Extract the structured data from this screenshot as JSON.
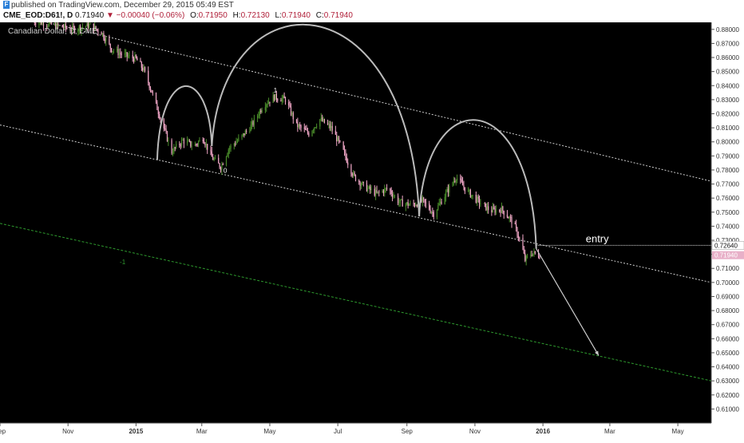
{
  "header": {
    "publisher_line": "published on TradingView.com, December 29, 2015 05:49 EST",
    "logo_glyph": "F",
    "symbol": "CME_EOD:D61!, D",
    "last_price": "0.71940",
    "change_arrow": "▼",
    "change": "−0.00040 (−0.06%)",
    "open_label": "O:",
    "open": "0.71950",
    "high_label": "H:",
    "high": "0.72130",
    "low_label": "L:",
    "low": "0.71940",
    "close_label": "C:",
    "close": "0.71940"
  },
  "chart_data": {
    "type": "candlestick",
    "title": "Canadian Dollar, D, CME",
    "background": "#000000",
    "up_color": "#4a8c2a",
    "down_color": "#f2a8c8",
    "ylim": [
      0.6,
      0.885
    ],
    "y_ticks": [
      "0.88000",
      "0.87000",
      "0.86000",
      "0.85000",
      "0.84000",
      "0.83000",
      "0.82000",
      "0.81000",
      "0.80000",
      "0.79000",
      "0.78000",
      "0.77000",
      "0.76000",
      "0.75000",
      "0.74000",
      "0.73000",
      "0.72000",
      "0.71000",
      "0.70000",
      "0.69000",
      "0.68000",
      "0.67000",
      "0.66000",
      "0.65000",
      "0.64000",
      "0.63000",
      "0.62000",
      "0.61000"
    ],
    "x_range": [
      "2014-09-01",
      "2016-05-31"
    ],
    "x_ticks": [
      {
        "date": "2014-09-01",
        "label": "Sep"
      },
      {
        "date": "2014-11-01",
        "label": "Nov"
      },
      {
        "date": "2015-01-01",
        "label": "2015"
      },
      {
        "date": "2015-03-01",
        "label": "Mar"
      },
      {
        "date": "2015-05-01",
        "label": "May"
      },
      {
        "date": "2015-07-01",
        "label": "Jul"
      },
      {
        "date": "2015-09-01",
        "label": "Sep"
      },
      {
        "date": "2015-11-01",
        "label": "Nov"
      },
      {
        "date": "2016-01-01",
        "label": "2016"
      },
      {
        "date": "2016-03-01",
        "label": "Mar"
      },
      {
        "date": "2016-05-01",
        "label": "May"
      }
    ],
    "price_path": [
      [
        "2014-10-01",
        0.886
      ],
      [
        "2014-10-20",
        0.883
      ],
      [
        "2014-11-05",
        0.88
      ],
      [
        "2014-11-20",
        0.883
      ],
      [
        "2014-12-01",
        0.878
      ],
      [
        "2014-12-10",
        0.866
      ],
      [
        "2014-12-20",
        0.862
      ],
      [
        "2015-01-01",
        0.859
      ],
      [
        "2015-01-08",
        0.851
      ],
      [
        "2015-01-15",
        0.836
      ],
      [
        "2015-01-25",
        0.812
      ],
      [
        "2015-02-02",
        0.793
      ],
      [
        "2015-02-12",
        0.801
      ],
      [
        "2015-02-22",
        0.797
      ],
      [
        "2015-03-02",
        0.803
      ],
      [
        "2015-03-10",
        0.789
      ],
      [
        "2015-03-18",
        0.782
      ],
      [
        "2015-03-25",
        0.795
      ],
      [
        "2015-04-05",
        0.803
      ],
      [
        "2015-04-15",
        0.812
      ],
      [
        "2015-04-25",
        0.826
      ],
      [
        "2015-05-05",
        0.832
      ],
      [
        "2015-05-15",
        0.83
      ],
      [
        "2015-05-25",
        0.812
      ],
      [
        "2015-06-05",
        0.806
      ],
      [
        "2015-06-15",
        0.816
      ],
      [
        "2015-06-25",
        0.81
      ],
      [
        "2015-07-05",
        0.795
      ],
      [
        "2015-07-15",
        0.776
      ],
      [
        "2015-07-25",
        0.768
      ],
      [
        "2015-08-05",
        0.763
      ],
      [
        "2015-08-15",
        0.767
      ],
      [
        "2015-08-25",
        0.757
      ],
      [
        "2015-09-05",
        0.755
      ],
      [
        "2015-09-15",
        0.758
      ],
      [
        "2015-09-25",
        0.749
      ],
      [
        "2015-10-05",
        0.762
      ],
      [
        "2015-10-15",
        0.775
      ],
      [
        "2015-10-25",
        0.765
      ],
      [
        "2015-11-05",
        0.757
      ],
      [
        "2015-11-15",
        0.751
      ],
      [
        "2015-11-25",
        0.752
      ],
      [
        "2015-12-05",
        0.743
      ],
      [
        "2015-12-12",
        0.729
      ],
      [
        "2015-12-16",
        0.716
      ],
      [
        "2015-12-22",
        0.721
      ],
      [
        "2015-12-29",
        0.7194
      ]
    ],
    "channel_lines": [
      {
        "name": "upper",
        "color": "#cccccc",
        "dash": "2,2",
        "p1": [
          "2014-09-01",
          0.893
        ],
        "p2": [
          "2016-05-31",
          0.772
        ]
      },
      {
        "name": "middle",
        "color": "#cccccc",
        "dash": "2,2",
        "p1": [
          "2014-09-01",
          0.812
        ],
        "p2": [
          "2016-05-31",
          0.7
        ]
      },
      {
        "name": "lower",
        "color": "#2e9a2e",
        "dash": "3,2",
        "p1": [
          "2014-09-01",
          0.742
        ],
        "p2": [
          "2016-05-31",
          0.63
        ]
      }
    ],
    "channel_level_labels": [
      {
        "text": "0",
        "date": "2015-03-22",
        "value": 0.778,
        "color": "#ffffff"
      },
      {
        "text": "1",
        "date": "2015-05-06",
        "value": 0.835,
        "color": "#ffffff"
      },
      {
        "text": "-1",
        "date": "2014-12-20",
        "value": 0.713,
        "color": "#2e9a2e"
      }
    ],
    "arcs": [
      {
        "from": [
          "2015-01-20",
          0.787
        ],
        "to": [
          "2015-03-10",
          0.797
        ],
        "peak": 0.826
      },
      {
        "from": [
          "2015-03-10",
          0.797
        ],
        "to": [
          "2015-09-12",
          0.747
        ],
        "peak": 0.848
      },
      {
        "from": [
          "2015-09-12",
          0.747
        ],
        "to": [
          "2015-12-26",
          0.724
        ],
        "peak": 0.791
      }
    ],
    "projection": {
      "from": [
        "2015-12-26",
        0.724
      ],
      "to": [
        "2016-02-20",
        0.648
      ],
      "color": "#cccccc"
    },
    "entry": {
      "label": "entry",
      "price": 0.7264,
      "price_label": "0.72640",
      "from_date": "2015-12-26"
    },
    "last_price_marker": {
      "price": 0.7194,
      "label": "0.71940",
      "color": "#e8b0c8"
    }
  }
}
